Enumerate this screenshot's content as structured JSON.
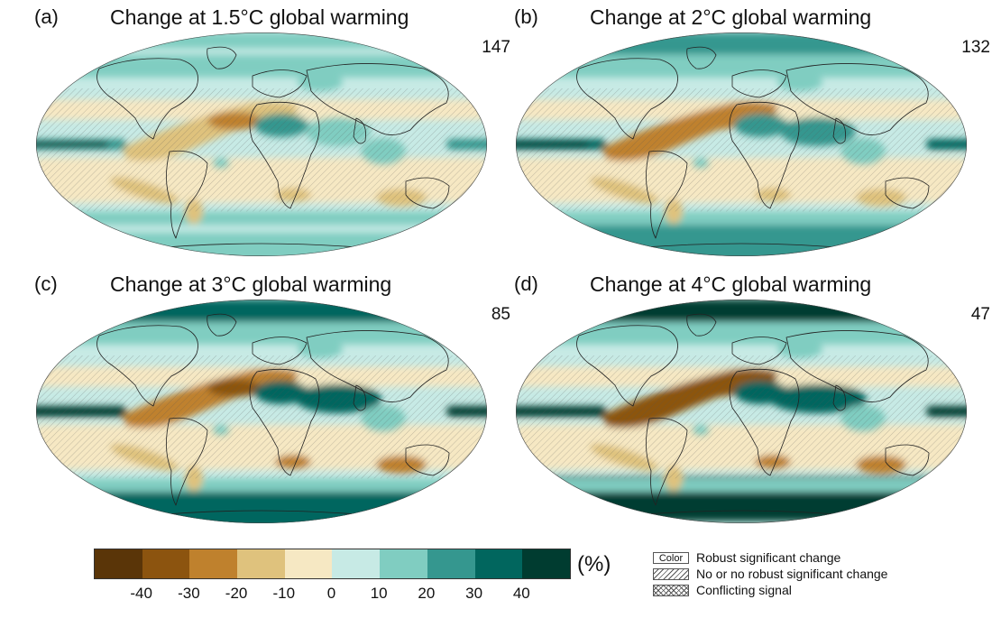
{
  "panels": [
    {
      "letter": "(a)",
      "title": "Change at 1.5°C global warming",
      "count": "147",
      "intensity": 1
    },
    {
      "letter": "(b)",
      "title": "Change at 2°C global warming",
      "count": "132",
      "intensity": 2
    },
    {
      "letter": "(c)",
      "title": "Change at 3°C global warming",
      "count": "85",
      "intensity": 3
    },
    {
      "letter": "(d)",
      "title": "Change at 4°C global warming",
      "count": "47",
      "intensity": 4
    }
  ],
  "colorbar": {
    "colors": [
      "#5a3508",
      "#8c540f",
      "#bf812d",
      "#dfc27d",
      "#f6e8c3",
      "#c7eae5",
      "#80cdc1",
      "#35978f",
      "#01665e",
      "#003c30"
    ],
    "ticks": [
      "-40",
      "-30",
      "-20",
      "-10",
      "0",
      "10",
      "20",
      "30",
      "40"
    ],
    "unit": "(%)"
  },
  "legend": {
    "color_box_label": "Color",
    "robust": "Robust significant change",
    "no_robust": "No or no robust significant change",
    "conflicting": "Conflicting signal"
  }
}
